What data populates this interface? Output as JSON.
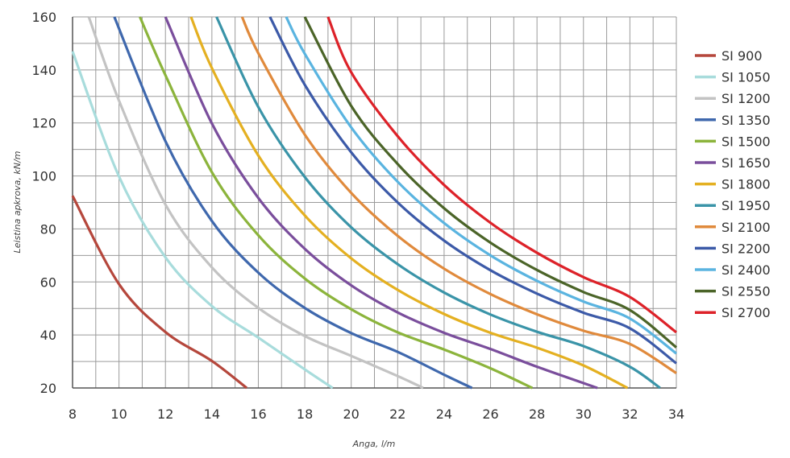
{
  "chart_data": {
    "type": "line",
    "title": "",
    "xlabel": "Anga, l/m",
    "ylabel": "Leistina apkrova, kN/m",
    "xlim": [
      8,
      34
    ],
    "ylim": [
      20,
      160
    ],
    "x_ticks": [
      8,
      10,
      12,
      14,
      16,
      18,
      20,
      22,
      24,
      26,
      28,
      30,
      32,
      34
    ],
    "y_ticks": [
      20,
      40,
      60,
      80,
      100,
      120,
      140,
      160
    ],
    "x_tick_labels": [
      "8",
      "10",
      "12",
      "14",
      "16",
      "18",
      "20",
      "22",
      "24",
      "26",
      "28",
      "30",
      "32",
      "34"
    ],
    "y_tick_labels": [
      "20",
      "40",
      "60",
      "80",
      "100",
      "120",
      "140",
      "160"
    ],
    "grid": true,
    "legend": "right",
    "series": [
      {
        "name": "SI 900",
        "color": "#b5473c",
        "points": [
          [
            8.0,
            92.5
          ],
          [
            10.0,
            59.2
          ],
          [
            12.0,
            41.1
          ],
          [
            14.0,
            30.2
          ],
          [
            15.5,
            20.0
          ]
        ]
      },
      {
        "name": "SI 1050",
        "color": "#a8dcdc",
        "points": [
          [
            8.0,
            147.0
          ],
          [
            10.0,
            99.8
          ],
          [
            12.0,
            69.3
          ],
          [
            14.0,
            50.9
          ],
          [
            16.0,
            39.0
          ],
          [
            18.0,
            27.0
          ],
          [
            19.2,
            20.0
          ]
        ]
      },
      {
        "name": "SI 1200",
        "color": "#c3c3c3",
        "points": [
          [
            8.7,
            160.0
          ],
          [
            10.0,
            128.4
          ],
          [
            12.0,
            89.2
          ],
          [
            14.0,
            65.5
          ],
          [
            16.0,
            50.2
          ],
          [
            18.0,
            39.6
          ],
          [
            20.0,
            32.1
          ],
          [
            22.0,
            24.5
          ],
          [
            23.1,
            20.0
          ]
        ]
      },
      {
        "name": "SI 1350",
        "color": "#3f68ad",
        "points": [
          [
            9.8,
            160.0
          ],
          [
            12.0,
            113.1
          ],
          [
            14.0,
            83.0
          ],
          [
            16.0,
            63.5
          ],
          [
            18.0,
            50.2
          ],
          [
            20.0,
            40.7
          ],
          [
            22.0,
            33.6
          ],
          [
            24.0,
            25.0
          ],
          [
            25.2,
            20.0
          ]
        ]
      },
      {
        "name": "SI 1500",
        "color": "#8cb43c",
        "points": [
          [
            10.9,
            160.0
          ],
          [
            12.0,
            138.0
          ],
          [
            14.0,
            101.4
          ],
          [
            16.0,
            77.6
          ],
          [
            18.0,
            61.3
          ],
          [
            20.0,
            49.7
          ],
          [
            22.0,
            41.0
          ],
          [
            24.0,
            34.5
          ],
          [
            26.0,
            27.4
          ],
          [
            27.8,
            20.0
          ]
        ]
      },
      {
        "name": "SI 1650",
        "color": "#7a4e9c",
        "points": [
          [
            12.0,
            160.0
          ],
          [
            14.0,
            119.8
          ],
          [
            16.0,
            91.7
          ],
          [
            18.0,
            72.5
          ],
          [
            20.0,
            58.7
          ],
          [
            22.0,
            48.5
          ],
          [
            24.0,
            40.8
          ],
          [
            26.0,
            34.7
          ],
          [
            28.0,
            28.0
          ],
          [
            30.6,
            20.0
          ]
        ]
      },
      {
        "name": "SI 1800",
        "color": "#e4b021",
        "points": [
          [
            13.1,
            160.0
          ],
          [
            14.0,
            140.7
          ],
          [
            16.0,
            107.7
          ],
          [
            18.0,
            85.1
          ],
          [
            20.0,
            68.9
          ],
          [
            22.0,
            57.0
          ],
          [
            24.0,
            47.9
          ],
          [
            26.0,
            40.8
          ],
          [
            28.0,
            35.2
          ],
          [
            30.0,
            28.5
          ],
          [
            31.9,
            20.0
          ]
        ]
      },
      {
        "name": "SI 1950",
        "color": "#3a94a8",
        "points": [
          [
            14.2,
            160.0
          ],
          [
            16.0,
            126.0
          ],
          [
            18.0,
            99.6
          ],
          [
            20.0,
            80.6
          ],
          [
            22.0,
            66.7
          ],
          [
            24.0,
            56.0
          ],
          [
            26.0,
            47.7
          ],
          [
            28.0,
            41.2
          ],
          [
            30.0,
            35.8
          ],
          [
            32.0,
            28.0
          ],
          [
            33.3,
            20.0
          ]
        ]
      },
      {
        "name": "SI 2100",
        "color": "#e08a3c",
        "points": [
          [
            15.3,
            160.0
          ],
          [
            16.0,
            146.3
          ],
          [
            18.0,
            115.6
          ],
          [
            20.0,
            93.6
          ],
          [
            22.0,
            77.4
          ],
          [
            24.0,
            65.0
          ],
          [
            26.0,
            55.4
          ],
          [
            28.0,
            47.8
          ],
          [
            30.0,
            41.6
          ],
          [
            32.0,
            36.6
          ],
          [
            34.0,
            25.6
          ]
        ]
      },
      {
        "name": "SI 2200",
        "color": "#3c5aa8",
        "points": [
          [
            16.5,
            160.0
          ],
          [
            18.0,
            134.4
          ],
          [
            20.0,
            108.9
          ],
          [
            22.0,
            90.0
          ],
          [
            24.0,
            75.6
          ],
          [
            26.0,
            64.4
          ],
          [
            28.0,
            55.6
          ],
          [
            30.0,
            48.4
          ],
          [
            32.0,
            42.5
          ],
          [
            34.0,
            29.3
          ]
        ]
      },
      {
        "name": "SI 2400",
        "color": "#5ab4e0",
        "points": [
          [
            17.2,
            160.0
          ],
          [
            18.0,
            146.1
          ],
          [
            20.0,
            118.3
          ],
          [
            22.0,
            97.8
          ],
          [
            24.0,
            82.2
          ],
          [
            26.0,
            70.0
          ],
          [
            28.0,
            60.4
          ],
          [
            30.0,
            52.6
          ],
          [
            32.0,
            46.2
          ],
          [
            34.0,
            33.0
          ]
        ]
      },
      {
        "name": "SI 2550",
        "color": "#4b6428",
        "points": [
          [
            18.0,
            160.0
          ],
          [
            20.0,
            126.4
          ],
          [
            22.0,
            104.5
          ],
          [
            24.0,
            87.8
          ],
          [
            26.0,
            74.8
          ],
          [
            28.0,
            64.5
          ],
          [
            30.0,
            56.2
          ],
          [
            32.0,
            49.4
          ],
          [
            34.0,
            35.3
          ]
        ]
      },
      {
        "name": "SI 2700",
        "color": "#dd2229",
        "points": [
          [
            19.0,
            160.0
          ],
          [
            20.0,
            139.1
          ],
          [
            22.0,
            115.0
          ],
          [
            24.0,
            96.6
          ],
          [
            26.0,
            82.3
          ],
          [
            28.0,
            71.0
          ],
          [
            30.0,
            61.8
          ],
          [
            32.0,
            54.3
          ],
          [
            34.0,
            41.0
          ]
        ]
      }
    ]
  }
}
